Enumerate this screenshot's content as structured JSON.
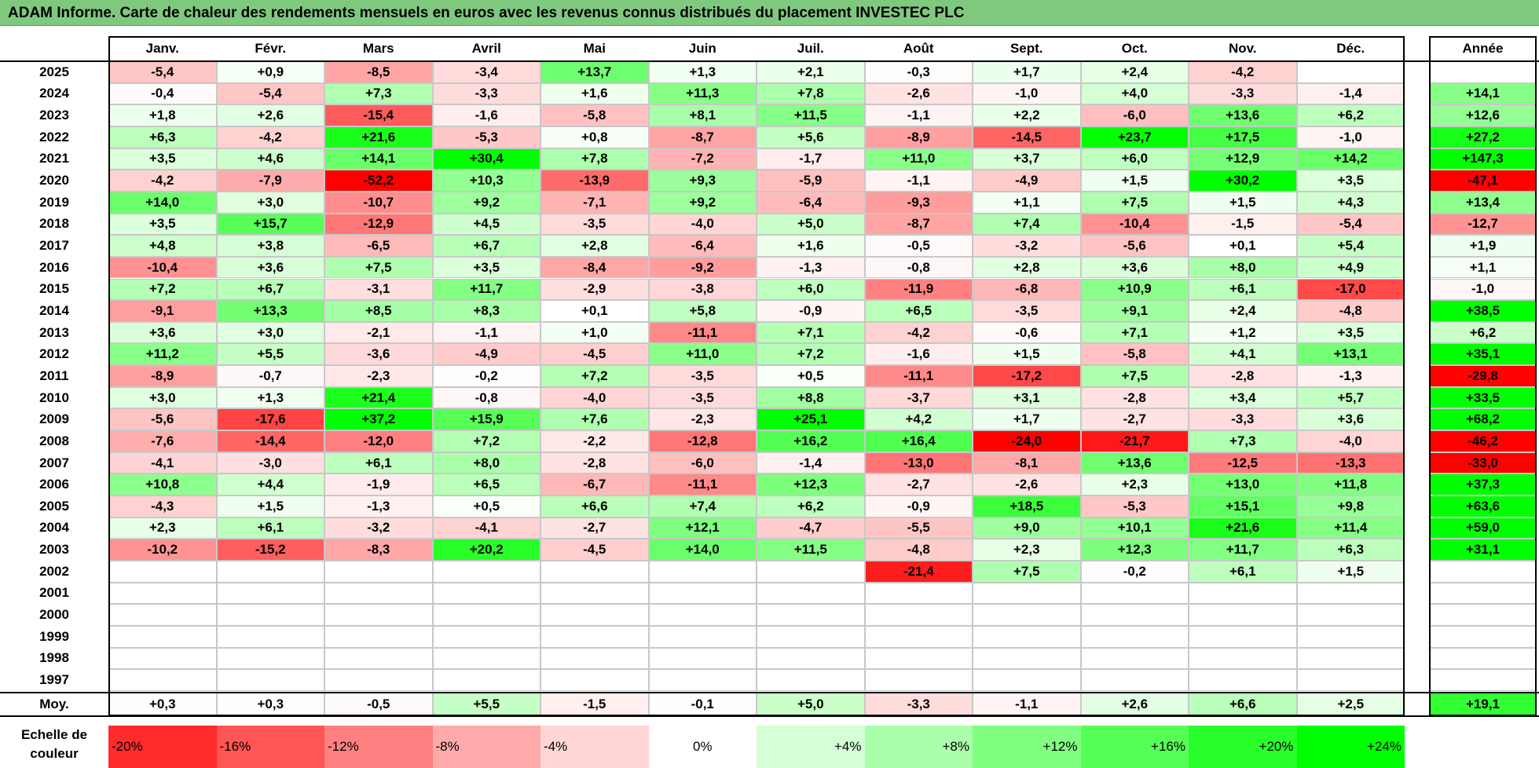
{
  "title": "ADAM Informe. Carte de chaleur des rendements mensuels en euros avec les revenus connus distribués du placement INVESTEC PLC",
  "chart_data": {
    "type": "heatmap",
    "columns": [
      "Janv.",
      "Févr.",
      "Mars",
      "Avril",
      "Mai",
      "Juin",
      "Juil.",
      "Août",
      "Sept.",
      "Oct.",
      "Nov.",
      "Déc."
    ],
    "year_column_label": "Année",
    "rows": [
      {
        "year": "2025",
        "values": [
          "-5,4",
          "+0,9",
          "-8,5",
          "-3,4",
          "+13,7",
          "+1,3",
          "+2,1",
          "-0,3",
          "+1,7",
          "+2,4",
          "-4,2",
          ""
        ],
        "annual": ""
      },
      {
        "year": "2024",
        "values": [
          "-0,4",
          "-5,4",
          "+7,3",
          "-3,3",
          "+1,6",
          "+11,3",
          "+7,8",
          "-2,6",
          "-1,0",
          "+4,0",
          "-3,3",
          "-1,4"
        ],
        "annual": "+14,1"
      },
      {
        "year": "2023",
        "values": [
          "+1,8",
          "+2,6",
          "-15,4",
          "-1,6",
          "-5,8",
          "+8,1",
          "+11,5",
          "-1,1",
          "+2,2",
          "-6,0",
          "+13,6",
          "+6,2"
        ],
        "annual": "+12,6"
      },
      {
        "year": "2022",
        "values": [
          "+6,3",
          "-4,2",
          "+21,6",
          "-5,3",
          "+0,8",
          "-8,7",
          "+5,6",
          "-8,9",
          "-14,5",
          "+23,7",
          "+17,5",
          "-1,0"
        ],
        "annual": "+27,2"
      },
      {
        "year": "2021",
        "values": [
          "+3,5",
          "+4,6",
          "+14,1",
          "+30,4",
          "+7,8",
          "-7,2",
          "-1,7",
          "+11,0",
          "+3,7",
          "+6,0",
          "+12,9",
          "+14,2"
        ],
        "annual": "+147,3"
      },
      {
        "year": "2020",
        "values": [
          "-4,2",
          "-7,9",
          "-52,2",
          "+10,3",
          "-13,9",
          "+9,3",
          "-5,9",
          "-1,1",
          "-4,9",
          "+1,5",
          "+30,2",
          "+3,5"
        ],
        "annual": "-47,1"
      },
      {
        "year": "2019",
        "values": [
          "+14,0",
          "+3,0",
          "-10,7",
          "+9,2",
          "-7,1",
          "+9,2",
          "-6,4",
          "-9,3",
          "+1,1",
          "+7,5",
          "+1,5",
          "+4,3"
        ],
        "annual": "+13,4"
      },
      {
        "year": "2018",
        "values": [
          "+3,5",
          "+15,7",
          "-12,9",
          "+4,5",
          "-3,5",
          "-4,0",
          "+5,0",
          "-8,7",
          "+7,4",
          "-10,4",
          "-1,5",
          "-5,4"
        ],
        "annual": "-12,7"
      },
      {
        "year": "2017",
        "values": [
          "+4,8",
          "+3,8",
          "-6,5",
          "+6,7",
          "+2,8",
          "-6,4",
          "+1,6",
          "-0,5",
          "-3,2",
          "-5,6",
          "+0,1",
          "+5,4"
        ],
        "annual": "+1,9"
      },
      {
        "year": "2016",
        "values": [
          "-10,4",
          "+3,6",
          "+7,5",
          "+3,5",
          "-8,4",
          "-9,2",
          "-1,3",
          "-0,8",
          "+2,8",
          "+3,6",
          "+8,0",
          "+4,9"
        ],
        "annual": "+1,1"
      },
      {
        "year": "2015",
        "values": [
          "+7,2",
          "+6,7",
          "-3,1",
          "+11,7",
          "-2,9",
          "-3,8",
          "+6,0",
          "-11,9",
          "-6,8",
          "+10,9",
          "+6,1",
          "-17,0"
        ],
        "annual": "-1,0"
      },
      {
        "year": "2014",
        "values": [
          "-9,1",
          "+13,3",
          "+8,5",
          "+8,3",
          "+0,1",
          "+5,8",
          "-0,9",
          "+6,5",
          "-3,5",
          "+9,1",
          "+2,4",
          "-4,8"
        ],
        "annual": "+38,5"
      },
      {
        "year": "2013",
        "values": [
          "+3,6",
          "+3,0",
          "-2,1",
          "-1,1",
          "+1,0",
          "-11,1",
          "+7,1",
          "-4,2",
          "-0,6",
          "+7,1",
          "+1,2",
          "+3,5"
        ],
        "annual": "+6,2"
      },
      {
        "year": "2012",
        "values": [
          "+11,2",
          "+5,5",
          "-3,6",
          "-4,9",
          "-4,5",
          "+11,0",
          "+7,2",
          "-1,6",
          "+1,5",
          "-5,8",
          "+4,1",
          "+13,1"
        ],
        "annual": "+35,1"
      },
      {
        "year": "2011",
        "values": [
          "-8,9",
          "-0,7",
          "-2,3",
          "-0,2",
          "+7,2",
          "-3,5",
          "+0,5",
          "-11,1",
          "-17,2",
          "+7,5",
          "-2,8",
          "-1,3"
        ],
        "annual": "-29,8"
      },
      {
        "year": "2010",
        "values": [
          "+3,0",
          "+1,3",
          "+21,4",
          "-0,8",
          "-4,0",
          "-3,5",
          "+8,8",
          "-3,7",
          "+3,1",
          "-2,8",
          "+3,4",
          "+5,7"
        ],
        "annual": "+33,5"
      },
      {
        "year": "2009",
        "values": [
          "-5,6",
          "-17,6",
          "+37,2",
          "+15,9",
          "+7,6",
          "-2,3",
          "+25,1",
          "+4,2",
          "+1,7",
          "-2,7",
          "-3,3",
          "+3,6"
        ],
        "annual": "+68,2"
      },
      {
        "year": "2008",
        "values": [
          "-7,6",
          "-14,4",
          "-12,0",
          "+7,2",
          "-2,2",
          "-12,8",
          "+16,2",
          "+16,4",
          "-24,0",
          "-21,7",
          "+7,3",
          "-4,0"
        ],
        "annual": "-46,2"
      },
      {
        "year": "2007",
        "values": [
          "-4,1",
          "-3,0",
          "+6,1",
          "+8,0",
          "-2,8",
          "-6,0",
          "-1,4",
          "-13,0",
          "-8,1",
          "+13,6",
          "-12,5",
          "-13,3"
        ],
        "annual": "-33,0"
      },
      {
        "year": "2006",
        "values": [
          "+10,8",
          "+4,4",
          "-1,9",
          "+6,5",
          "-6,7",
          "-11,1",
          "+12,3",
          "-2,7",
          "-2,6",
          "+2,3",
          "+13,0",
          "+11,8"
        ],
        "annual": "+37,3"
      },
      {
        "year": "2005",
        "values": [
          "-4,3",
          "+1,5",
          "-1,3",
          "+0,5",
          "+6,6",
          "+7,4",
          "+6,2",
          "-0,9",
          "+18,5",
          "-5,3",
          "+15,1",
          "+9,8"
        ],
        "annual": "+63,6"
      },
      {
        "year": "2004",
        "values": [
          "+2,3",
          "+6,1",
          "-3,2",
          "-4,1",
          "-2,7",
          "+12,1",
          "-4,7",
          "-5,5",
          "+9,0",
          "+10,1",
          "+21,6",
          "+11,4"
        ],
        "annual": "+59,0"
      },
      {
        "year": "2003",
        "values": [
          "-10,2",
          "-15,2",
          "-8,3",
          "+20,2",
          "-4,5",
          "+14,0",
          "+11,5",
          "-4,8",
          "+2,3",
          "+12,3",
          "+11,7",
          "+6,3"
        ],
        "annual": "+31,1"
      },
      {
        "year": "2002",
        "values": [
          "",
          "",
          "",
          "",
          "",
          "",
          "",
          "-21,4",
          "+7,5",
          "-0,2",
          "+6,1",
          "+1,5"
        ],
        "annual": ""
      },
      {
        "year": "2001",
        "values": [
          "",
          "",
          "",
          "",
          "",
          "",
          "",
          "",
          "",
          "",
          "",
          ""
        ],
        "annual": ""
      },
      {
        "year": "2000",
        "values": [
          "",
          "",
          "",
          "",
          "",
          "",
          "",
          "",
          "",
          "",
          "",
          ""
        ],
        "annual": ""
      },
      {
        "year": "1999",
        "values": [
          "",
          "",
          "",
          "",
          "",
          "",
          "",
          "",
          "",
          "",
          "",
          ""
        ],
        "annual": ""
      },
      {
        "year": "1998",
        "values": [
          "",
          "",
          "",
          "",
          "",
          "",
          "",
          "",
          "",
          "",
          "",
          ""
        ],
        "annual": ""
      },
      {
        "year": "1997",
        "values": [
          "",
          "",
          "",
          "",
          "",
          "",
          "",
          "",
          "",
          "",
          "",
          ""
        ],
        "annual": ""
      }
    ],
    "average": {
      "label": "Moy.",
      "values": [
        "+0,3",
        "+0,3",
        "-0,5",
        "+5,5",
        "-1,5",
        "-0,1",
        "+5,0",
        "-3,3",
        "-1,1",
        "+2,6",
        "+6,6",
        "+2,5"
      ],
      "annual": "+19,1"
    },
    "scale": {
      "label": "Echelle de couleur",
      "stops": [
        "-20%",
        "-16%",
        "-12%",
        "-8%",
        "-4%",
        "0%",
        "+4%",
        "+8%",
        "+12%",
        "+16%",
        "+20%",
        "+24%"
      ]
    },
    "colors": {
      "negative": "#ff0000",
      "positive": "#00ff00",
      "neutral": "#ffffff",
      "title_bg": "#7fc97f"
    }
  }
}
